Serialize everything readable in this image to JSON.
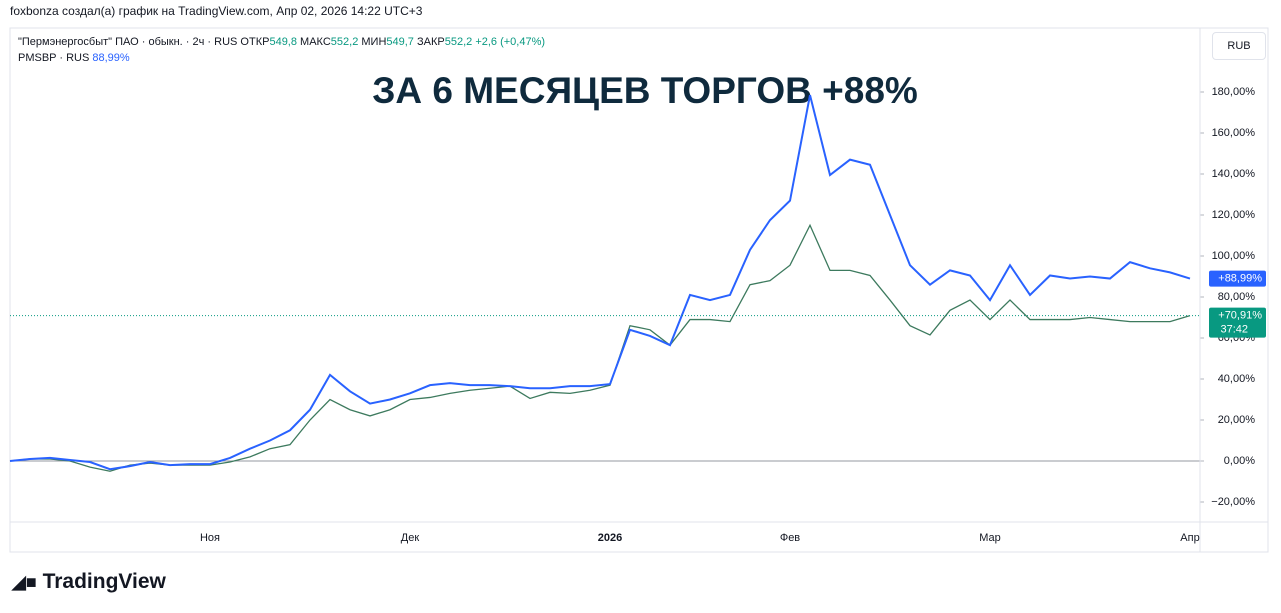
{
  "header": {
    "attribution": "foxbonza создал(а) график на TradingView.com, Апр 02, 2026 14:22 UTC+3",
    "currency_button": "RUB",
    "logo": "TradingView"
  },
  "legend": {
    "main": {
      "title": "\"Пермэнергосбыт\" ПАО · обыкн. · 2ч · RUS",
      "open_label": "ОТКР",
      "open": "549,8",
      "high_label": "МАКС",
      "high": "552,2",
      "low_label": "МИН",
      "low": "549,7",
      "close_label": "ЗАКР",
      "close": "552,2",
      "change": "+2,6 (+0,47%)"
    },
    "compare": {
      "title": "PMSBP · RUS",
      "value": "88,99%"
    }
  },
  "chart_data": {
    "type": "line",
    "annotation": "ЗА 6 МЕСЯЦЕВ ТОРГОВ +88%",
    "categories": [
      null,
      null,
      null,
      null,
      null,
      null,
      null,
      null,
      null,
      null,
      "Ноя",
      null,
      null,
      null,
      null,
      null,
      null,
      null,
      null,
      null,
      "Дек",
      null,
      null,
      null,
      null,
      null,
      null,
      null,
      null,
      null,
      "2026",
      null,
      null,
      null,
      null,
      null,
      null,
      null,
      null,
      "Фев",
      null,
      null,
      null,
      null,
      null,
      null,
      null,
      null,
      null,
      "Мар",
      null,
      null,
      null,
      null,
      null,
      null,
      null,
      null,
      null,
      "Апр"
    ],
    "series": [
      {
        "name": "\"Пермэнергосбыт\" ПАО · обыкн. · 2ч · RUS",
        "color": "#3d7a5e",
        "last_label": "+70,91%",
        "countdown": "37:42",
        "values": [
          0,
          1,
          1,
          0,
          -3,
          -5,
          -2,
          -1,
          -2,
          -2,
          -2,
          -0.5,
          2,
          6,
          8,
          20,
          30,
          25,
          22,
          25,
          30,
          31,
          33,
          34.5,
          35.5,
          36.5,
          30.5,
          33.5,
          33,
          34.5,
          37,
          66,
          64,
          56.5,
          69,
          69,
          68,
          86,
          88,
          95.5,
          115,
          93,
          93,
          90.5,
          78.5,
          66,
          61.5,
          73.5,
          78.5,
          69,
          78.5,
          69,
          69,
          69,
          70,
          69,
          68,
          68,
          68,
          70.91
        ]
      },
      {
        "name": "PMSBP · RUS",
        "color": "#2962ff",
        "last_label": "+88,99%",
        "values": [
          0,
          1,
          1.5,
          0.5,
          -0.5,
          -4,
          -2.5,
          -0.5,
          -2,
          -1.5,
          -1.5,
          1.5,
          6,
          10,
          15,
          25,
          42,
          34,
          28,
          30,
          33,
          37,
          38,
          37,
          37,
          36.5,
          35.5,
          35.5,
          36.5,
          36.5,
          37.5,
          64,
          61,
          56.5,
          81,
          78.5,
          81,
          103,
          117.5,
          127,
          178.5,
          139.5,
          147,
          144.5,
          120,
          95.5,
          86,
          93,
          90.5,
          78.5,
          95.5,
          81,
          90.5,
          89,
          90,
          89,
          97,
          94,
          92,
          88.99
        ]
      }
    ],
    "ylim": [
      -30,
      200
    ],
    "yticks": [
      {
        "value": -20,
        "label": "−20,00%"
      },
      {
        "value": 0,
        "label": "0,00%"
      },
      {
        "value": 20,
        "label": "20,00%"
      },
      {
        "value": 40,
        "label": "40,00%"
      },
      {
        "value": 60,
        "label": "60,00%"
      },
      {
        "value": 80,
        "label": "80,00%"
      },
      {
        "value": 100,
        "label": "100,00%"
      },
      {
        "value": 120,
        "label": "120,00%"
      },
      {
        "value": 140,
        "label": "140,00%"
      },
      {
        "value": 160,
        "label": "160,00%"
      },
      {
        "value": 180,
        "label": "180,00%"
      }
    ],
    "grid": false
  }
}
